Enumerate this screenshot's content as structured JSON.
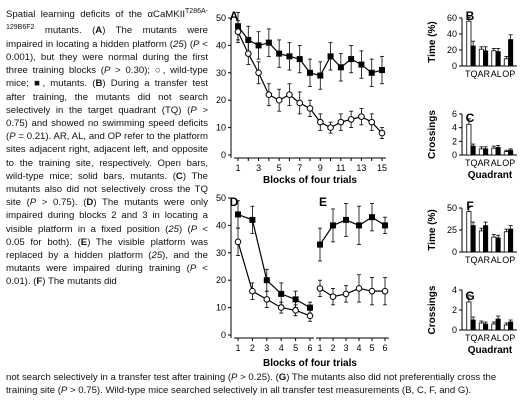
{
  "caption": {
    "sentences": [
      "Spatial learning deficits of the αCaMKII",
      "T286A-129B6F2",
      " mutants. (",
      "A",
      ") The mutants were impaired in locating a hidden platform (",
      "25",
      ") (",
      "P",
      " < 0.001), but they were normal during the first three training blocks (",
      "P",
      " > 0.30); ○, wild-type mice; ■, mutants. (",
      "B",
      ") During a transfer test after training, the mutants did not search selectively in the target quadrant (TQ) (",
      "P",
      " > 0.75) and showed no swimming speed deficits (",
      "P",
      " = 0.21). AR, AL, and OP refer to the platform sites adjacent right, adjacent left, and opposite to the training site, respectively. Open bars, wild-type mice; solid bars, mutants. (",
      "C",
      ") The mutants also did not selectively cross the TQ site (",
      "P",
      " > 0.75). (",
      "D",
      ") The mutants were only impaired during blocks 2 and 3 in locating a visible platform in a fixed position (",
      "25",
      ") (",
      "P",
      " < 0.05 for both). (",
      "E",
      ") The visible platform was replaced by a hidden platform (",
      "25",
      "), and the mutants were impaired during training (",
      "P",
      " < 0.01). (",
      "F",
      ") The mutants did"
    ],
    "bottom": [
      "not search selectively in a transfer test after training (",
      "P",
      " > 0.25). (",
      "G",
      ") The mutants also did not preferentially cross the training site (",
      "P",
      " > 0.75). Wild-type mice searched selectively in all transfer test measurements (B, C, F, and G)."
    ]
  },
  "colors": {
    "wildtype": "#ffffff",
    "mutant": "#000000",
    "axis": "#000000"
  },
  "chart_data": [
    {
      "panel": "A",
      "type": "line",
      "xlabel": "Blocks of four trials",
      "ylabel": "Escape latency (s)",
      "xlim": [
        1,
        15
      ],
      "ylim": [
        0,
        50
      ],
      "xticks": [
        1,
        3,
        5,
        7,
        9,
        11,
        13,
        15
      ],
      "x": [
        1,
        2,
        3,
        4,
        5,
        6,
        7,
        8,
        9,
        10,
        11,
        12,
        13,
        14,
        15
      ],
      "series": [
        {
          "name": "mutant",
          "values": [
            47,
            42,
            40,
            41,
            37,
            36,
            35,
            30,
            29,
            36,
            32,
            35,
            33,
            30,
            31
          ],
          "err": [
            5,
            5,
            5,
            5,
            5,
            5,
            5,
            5,
            5,
            5,
            5,
            5,
            5,
            5,
            5
          ]
        },
        {
          "name": "wild-type",
          "values": [
            45,
            37,
            30,
            22,
            20,
            22,
            19,
            17,
            12,
            10,
            12,
            13,
            14,
            12,
            8
          ],
          "err": [
            4,
            4,
            4,
            4,
            4,
            4,
            4,
            3,
            3,
            2,
            3,
            3,
            3,
            3,
            2
          ]
        }
      ]
    },
    {
      "panel": "B",
      "type": "bar",
      "ylabel": "Time (%)",
      "ylim": [
        0,
        60
      ],
      "yticks": [
        0,
        20,
        40,
        60
      ],
      "categories": [
        "TQ",
        "AR",
        "AL",
        "OP"
      ],
      "series": [
        {
          "name": "wild-type",
          "values": [
            56,
            21,
            19,
            9
          ],
          "err": [
            5,
            3,
            3,
            3
          ]
        },
        {
          "name": "mutant",
          "values": [
            25,
            19,
            18,
            33
          ],
          "err": [
            6,
            5,
            4,
            6
          ]
        }
      ]
    },
    {
      "panel": "C",
      "type": "bar",
      "ylabel": "Crossings",
      "xlabel": "Quadrant",
      "ylim": [
        0,
        6
      ],
      "yticks": [
        0,
        2,
        4,
        6
      ],
      "categories": [
        "TQ",
        "AR",
        "AL",
        "OP"
      ],
      "series": [
        {
          "name": "wild-type",
          "values": [
            4.5,
            0.9,
            1.0,
            0.5
          ],
          "err": [
            0.8,
            0.3,
            0.3,
            0.2
          ]
        },
        {
          "name": "mutant",
          "values": [
            1.3,
            0.9,
            1.1,
            0.7
          ],
          "err": [
            0.3,
            0.3,
            0.3,
            0.2
          ]
        }
      ]
    },
    {
      "panel": "D",
      "type": "line",
      "xlabel": "Blocks of four trials",
      "ylabel": "Escape latency (s)",
      "xlim": [
        1,
        6
      ],
      "ylim": [
        0,
        50
      ],
      "xticks": [
        1,
        2,
        3,
        4,
        5,
        6
      ],
      "x": [
        1,
        2,
        3,
        4,
        5,
        6
      ],
      "series": [
        {
          "name": "mutant",
          "values": [
            44,
            42,
            20,
            15,
            13,
            10
          ],
          "err": [
            5,
            5,
            4,
            4,
            3,
            2
          ]
        },
        {
          "name": "wild-type",
          "values": [
            34,
            16,
            13,
            10,
            9,
            7
          ],
          "err": [
            5,
            3,
            3,
            2,
            2,
            2
          ]
        }
      ]
    },
    {
      "panel": "E",
      "type": "line",
      "xlim": [
        1,
        6
      ],
      "ylim": [
        0,
        50
      ],
      "xticks": [
        1,
        2,
        3,
        4,
        5,
        6
      ],
      "x": [
        1,
        2,
        3,
        4,
        5,
        6
      ],
      "series": [
        {
          "name": "mutant",
          "values": [
            33,
            40,
            42,
            40,
            43,
            40
          ],
          "err": [
            6,
            6,
            6,
            7,
            5,
            3
          ]
        },
        {
          "name": "wild-type",
          "values": [
            17,
            14,
            15,
            17,
            16,
            16
          ],
          "err": [
            3,
            3,
            3,
            5,
            5,
            5
          ]
        }
      ]
    },
    {
      "panel": "F",
      "type": "bar",
      "ylabel": "Time (%)",
      "ylim": [
        0,
        50
      ],
      "yticks": [
        0,
        25,
        50
      ],
      "categories": [
        "TQ",
        "AR",
        "AL",
        "OP"
      ],
      "series": [
        {
          "name": "wild-type",
          "values": [
            46,
            24,
            17,
            23
          ],
          "err": [
            5,
            3,
            3,
            3
          ]
        },
        {
          "name": "mutant",
          "values": [
            30,
            30,
            16,
            26
          ],
          "err": [
            4,
            4,
            3,
            4
          ]
        }
      ]
    },
    {
      "panel": "G",
      "type": "bar",
      "ylabel": "Crossings",
      "xlabel": "Quadrant",
      "ylim": [
        0,
        4
      ],
      "yticks": [
        0,
        2,
        4
      ],
      "categories": [
        "TQ",
        "AR",
        "AL",
        "OP"
      ],
      "series": [
        {
          "name": "wild-type",
          "values": [
            2.8,
            0.7,
            0.6,
            0.5
          ],
          "err": [
            0.7,
            0.2,
            0.2,
            0.2
          ]
        },
        {
          "name": "mutant",
          "values": [
            1.0,
            0.6,
            1.1,
            0.8
          ],
          "err": [
            0.3,
            0.2,
            0.3,
            0.2
          ]
        }
      ]
    }
  ]
}
